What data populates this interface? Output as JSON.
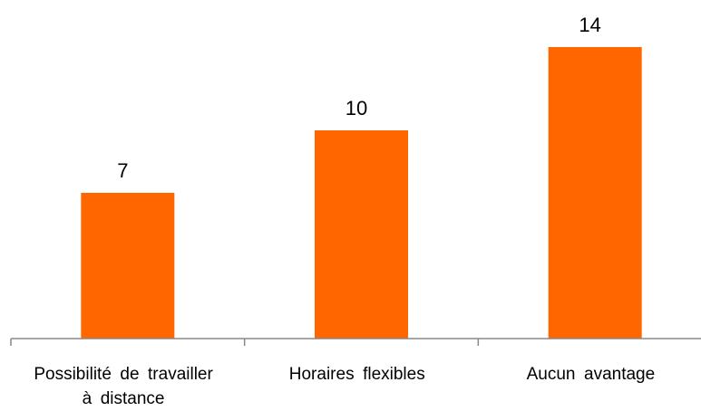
{
  "chart_data": {
    "type": "bar",
    "title": "",
    "categories": [
      "Possibilité de travailler à distance ",
      "Horaires flexibles ",
      "Aucun avantage "
    ],
    "category_lines": [
      [
        "Possibilité de travailler ",
        "à distance "
      ],
      [
        "Horaires flexibles "
      ],
      [
        "Aucun avantage "
      ]
    ],
    "values": [
      7,
      10,
      14
    ],
    "data_labels": [
      "7 ",
      "10 ",
      "14 "
    ],
    "xlabel": "",
    "ylabel": "",
    "ylim": [
      0,
      15
    ],
    "grid": false,
    "legend": "none",
    "bar_color": "#ff6600"
  }
}
